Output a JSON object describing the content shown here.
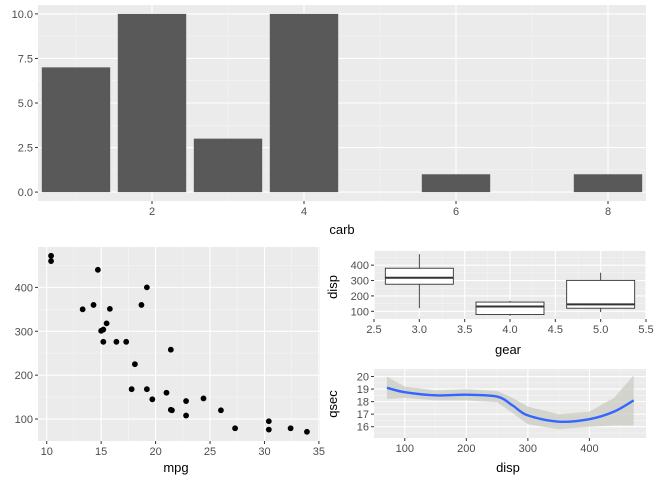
{
  "chart_data": [
    {
      "id": "carb-bar",
      "type": "bar",
      "xlabel": "carb",
      "ylabel": "",
      "x": [
        1,
        2,
        3,
        4,
        6,
        8
      ],
      "values": [
        7,
        10,
        3,
        10,
        1,
        1
      ],
      "xlim": [
        0.5,
        8.5
      ],
      "ylim": [
        -0.5,
        10.5
      ],
      "xticks": [
        2,
        4,
        6,
        8
      ],
      "yticks": [
        0,
        2.5,
        5,
        7.5,
        10
      ],
      "ytick_labels": [
        "0.0",
        "2.5",
        "5.0",
        "7.5",
        "10.0"
      ],
      "grid": true,
      "bar_color": "#595959"
    },
    {
      "id": "mpg-disp-scatter",
      "type": "scatter",
      "xlabel": "mpg",
      "ylabel": "",
      "points": [
        [
          10.4,
          472
        ],
        [
          10.4,
          460
        ],
        [
          13.3,
          350
        ],
        [
          14.3,
          360
        ],
        [
          14.7,
          440
        ],
        [
          15.0,
          301
        ],
        [
          15.2,
          304
        ],
        [
          15.2,
          276
        ],
        [
          15.5,
          318
        ],
        [
          15.8,
          351
        ],
        [
          16.4,
          276
        ],
        [
          17.3,
          276
        ],
        [
          17.8,
          168
        ],
        [
          18.1,
          225
        ],
        [
          18.7,
          360
        ],
        [
          19.2,
          168
        ],
        [
          19.2,
          400
        ],
        [
          19.7,
          145
        ],
        [
          21.0,
          160
        ],
        [
          21.4,
          121
        ],
        [
          21.4,
          258
        ],
        [
          21.5,
          120
        ],
        [
          22.8,
          108
        ],
        [
          22.8,
          141
        ],
        [
          24.4,
          147
        ],
        [
          26.0,
          120
        ],
        [
          27.3,
          79
        ],
        [
          30.4,
          95
        ],
        [
          30.4,
          76
        ],
        [
          32.4,
          79
        ],
        [
          33.9,
          71
        ]
      ],
      "xlim": [
        9.2,
        35.1
      ],
      "ylim": [
        50,
        492
      ],
      "xticks": [
        10,
        15,
        20,
        25,
        30,
        35
      ],
      "yticks": [
        100,
        200,
        300,
        400
      ],
      "grid": true
    },
    {
      "id": "gear-disp-box",
      "type": "boxplot",
      "xlabel": "gear",
      "ylabel": "disp",
      "boxes": [
        {
          "x": 3,
          "min": 120,
          "q1": 276,
          "median": 318,
          "q3": 380,
          "max": 472
        },
        {
          "x": 4,
          "min": 71,
          "q1": 79,
          "median": 131,
          "q3": 160,
          "max": 168
        },
        {
          "x": 5,
          "min": 95,
          "q1": 120,
          "median": 145,
          "q3": 301,
          "max": 351
        }
      ],
      "xlim": [
        2.5,
        5.5
      ],
      "ylim": [
        50,
        492
      ],
      "xticks": [
        2.5,
        3.0,
        3.5,
        4.0,
        4.5,
        5.0,
        5.5
      ],
      "xtick_labels": [
        "2.5",
        "3.0",
        "3.5",
        "4.0",
        "4.5",
        "5.0",
        "5.5"
      ],
      "yticks": [
        100,
        200,
        300,
        400
      ],
      "grid": true
    },
    {
      "id": "disp-qsec-smooth",
      "type": "line",
      "xlabel": "disp",
      "ylabel": "qsec",
      "x": [
        71,
        100,
        150,
        200,
        250,
        275,
        300,
        350,
        400,
        440,
        472
      ],
      "y": [
        19.1,
        18.75,
        18.5,
        18.55,
        18.4,
        17.7,
        16.9,
        16.4,
        16.6,
        17.2,
        18.1
      ],
      "band_upper": [
        20.0,
        19.2,
        18.9,
        19.0,
        18.85,
        18.3,
        17.6,
        17.0,
        17.2,
        18.3,
        20.1
      ],
      "band_lower": [
        18.2,
        18.3,
        18.1,
        18.1,
        17.95,
        17.1,
        16.2,
        15.8,
        16.0,
        16.1,
        16.1
      ],
      "xlim": [
        50,
        492
      ],
      "ylim": [
        15.1,
        20.6
      ],
      "xticks": [
        100,
        200,
        300,
        400
      ],
      "yticks": [
        16,
        17,
        18,
        19,
        20
      ],
      "grid": true,
      "line_color": "#3366FF",
      "band_color": "#cbcbc4"
    }
  ]
}
